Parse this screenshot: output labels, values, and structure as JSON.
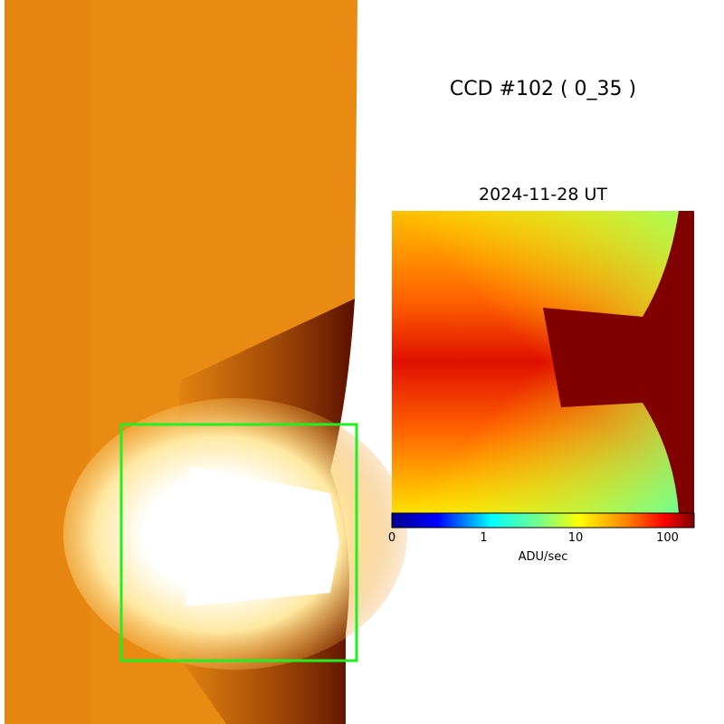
{
  "title": "CCD #102 ( 0_35 )",
  "date": "2024-11-28 UT",
  "colorbar": {
    "ticks": [
      0,
      1,
      10,
      100
    ],
    "label": "ADU/sec"
  }
}
